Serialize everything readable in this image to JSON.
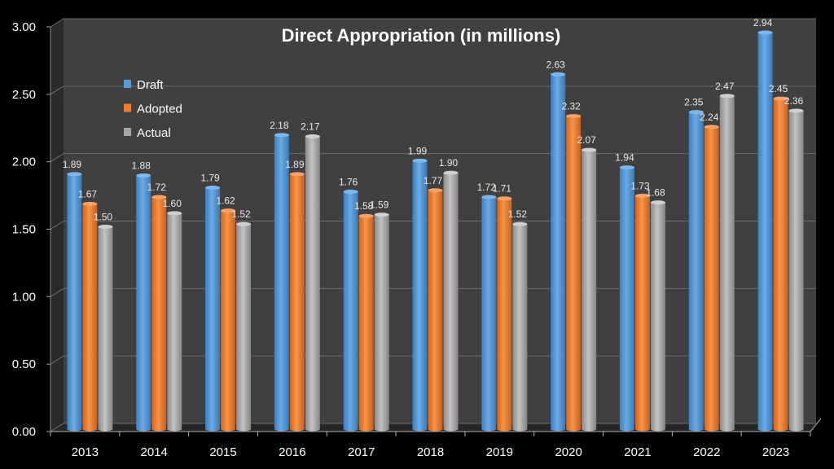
{
  "chart_data": {
    "type": "bar",
    "title": "Direct Appropriation (in millions)",
    "xlabel": "",
    "ylabel": "",
    "ylim": [
      0,
      3
    ],
    "yticks": [
      "0.00",
      "0.50",
      "1.00",
      "1.50",
      "2.00",
      "2.50",
      "3.00"
    ],
    "grid": true,
    "legend_position": "top-left",
    "categories": [
      "2013",
      "2014",
      "2015",
      "2016",
      "2017",
      "2018",
      "2019",
      "2020",
      "2021",
      "2022",
      "2023"
    ],
    "series": [
      {
        "name": "Draft",
        "color": "#5B9BD5",
        "values": [
          1.89,
          1.88,
          1.79,
          2.18,
          1.76,
          1.99,
          1.72,
          2.63,
          1.94,
          2.35,
          2.94
        ]
      },
      {
        "name": "Adopted",
        "color": "#ED7D31",
        "values": [
          1.67,
          1.72,
          1.62,
          1.89,
          1.58,
          1.77,
          1.71,
          2.32,
          1.73,
          2.24,
          2.45
        ]
      },
      {
        "name": "Actual",
        "color": "#A5A5A5",
        "values": [
          1.5,
          1.6,
          1.52,
          2.17,
          1.59,
          1.9,
          1.52,
          2.07,
          1.68,
          2.47,
          2.36
        ]
      }
    ]
  }
}
